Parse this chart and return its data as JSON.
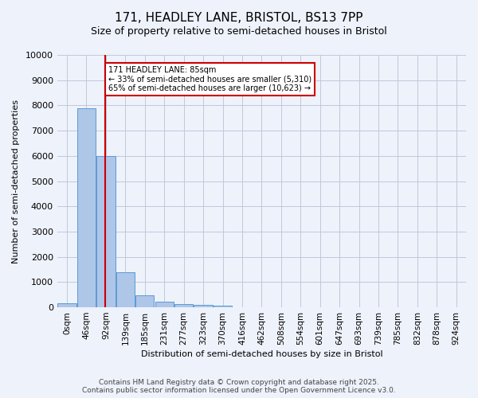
{
  "title_line1": "171, HEADLEY LANE, BRISTOL, BS13 7PP",
  "title_line2": "Size of property relative to semi-detached houses in Bristol",
  "xlabel": "Distribution of semi-detached houses by size in Bristol",
  "ylabel": "Number of semi-detached properties",
  "bin_labels": [
    "0sqm",
    "46sqm",
    "92sqm",
    "139sqm",
    "185sqm",
    "231sqm",
    "277sqm",
    "323sqm",
    "370sqm",
    "416sqm",
    "462sqm",
    "508sqm",
    "554sqm",
    "601sqm",
    "647sqm",
    "693sqm",
    "739sqm",
    "785sqm",
    "832sqm",
    "878sqm",
    "924sqm"
  ],
  "bar_values": [
    150,
    7900,
    6000,
    1400,
    480,
    230,
    130,
    90,
    55,
    0,
    0,
    0,
    0,
    0,
    0,
    0,
    0,
    0,
    0,
    0,
    0
  ],
  "bar_color": "#aec6e8",
  "bar_edge_color": "#5b9bd5",
  "property_line_x": 1.975,
  "property_sqm": 85,
  "property_label": "171 HEADLEY LANE: 85sqm",
  "smaller_pct": 33,
  "smaller_count": 5310,
  "larger_pct": 65,
  "larger_count": 10623,
  "annotation_box_color": "#ffffff",
  "annotation_box_edge": "#cc0000",
  "line_color": "#cc0000",
  "ylim": [
    0,
    10000
  ],
  "yticks": [
    0,
    1000,
    2000,
    3000,
    4000,
    5000,
    6000,
    7000,
    8000,
    9000,
    10000
  ],
  "footer_line1": "Contains HM Land Registry data © Crown copyright and database right 2025.",
  "footer_line2": "Contains public sector information licensed under the Open Government Licence v3.0.",
  "bg_color": "#eef2fb"
}
